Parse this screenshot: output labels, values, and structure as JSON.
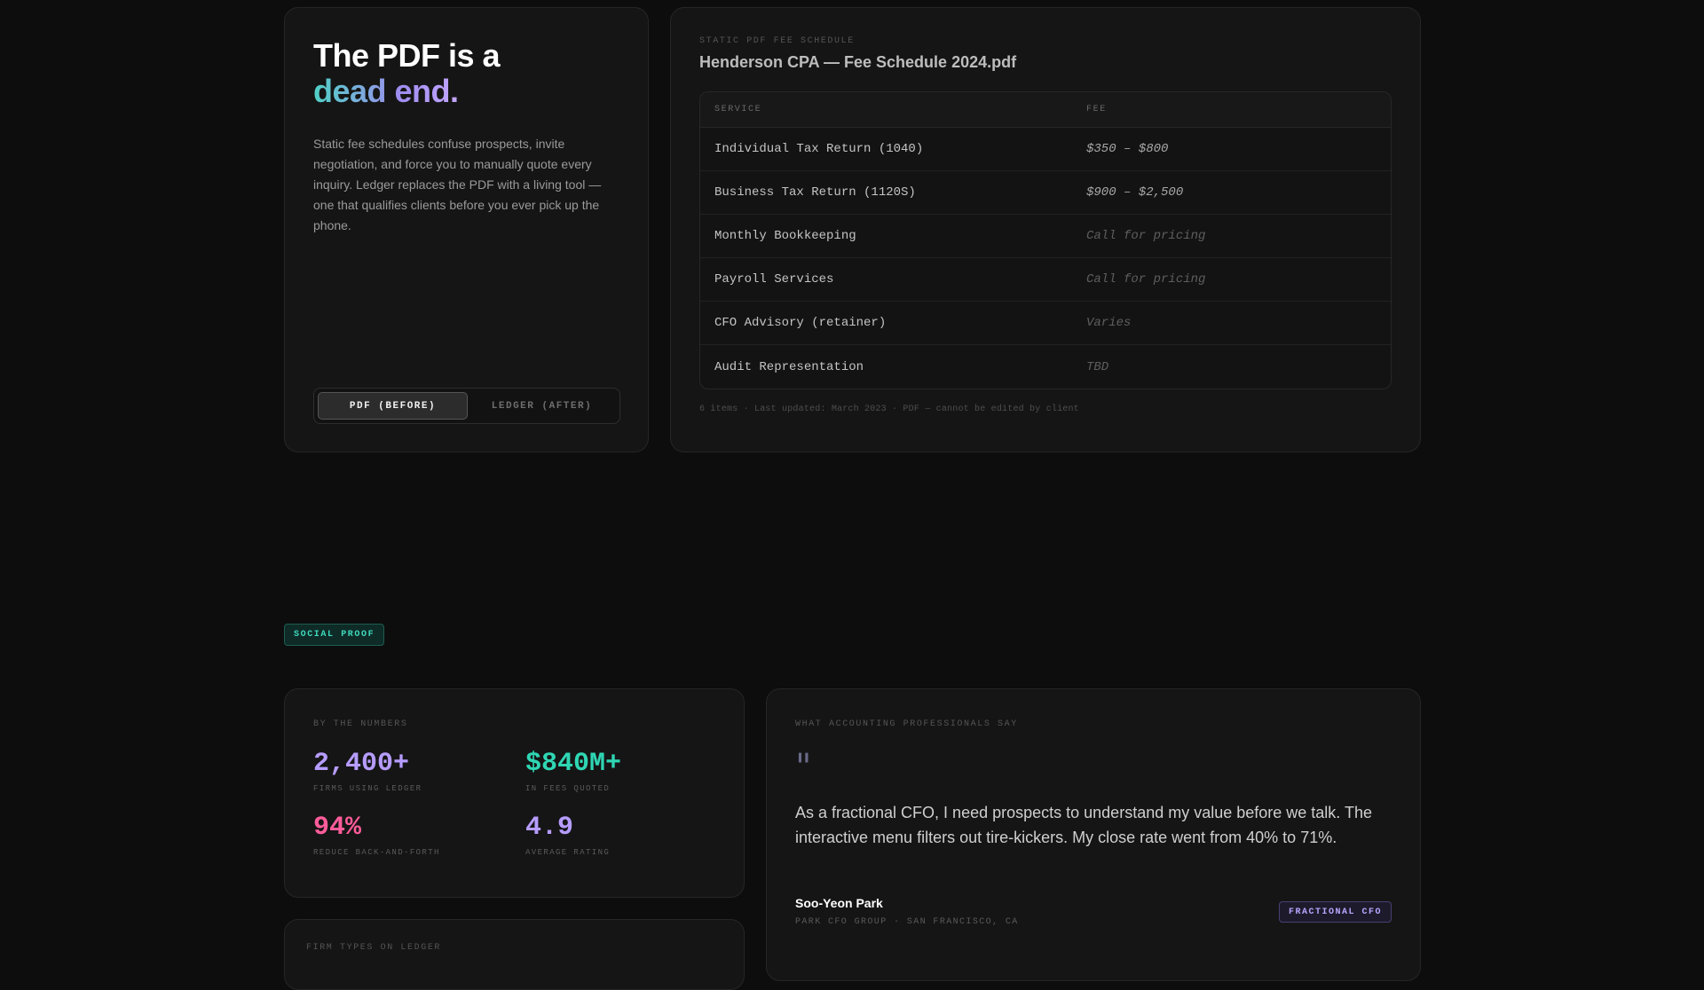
{
  "hero": {
    "title_line1": "The PDF is a",
    "title_line2": "dead end.",
    "description": "Static fee schedules confuse prospects, invite negotiation, and force you to manually quote every inquiry. Ledger replaces the PDF with a living tool — one that qualifies clients before you ever pick up the phone.",
    "toggle": {
      "before_label": "PDF (BEFORE)",
      "after_label": "LEDGER (AFTER)",
      "selected": "PDF (BEFORE)"
    }
  },
  "pdf": {
    "eyebrow": "STATIC PDF FEE SCHEDULE",
    "title": "Henderson CPA — Fee Schedule 2024.pdf",
    "columns": [
      "SERVICE",
      "FEE"
    ],
    "rows": [
      {
        "service": "Individual Tax Return (1040)",
        "fee": "$350 – $800"
      },
      {
        "service": "Business Tax Return (1120S)",
        "fee": "$900 – $2,500"
      },
      {
        "service": "Monthly Bookkeeping",
        "fee": "Call for pricing"
      },
      {
        "service": "Payroll Services",
        "fee": "Call for pricing"
      },
      {
        "service": "CFO Advisory (retainer)",
        "fee": "Varies"
      },
      {
        "service": "Audit Representation",
        "fee": "TBD"
      }
    ],
    "footer": "6 items · Last updated: March 2023 · PDF — cannot be edited by client"
  },
  "social_proof": {
    "badge": "SOCIAL PROOF"
  },
  "stats": {
    "eyebrow": "BY THE NUMBERS",
    "items": [
      {
        "value": "2,400+",
        "label": "FIRMS USING LEDGER",
        "color": "#b69cff"
      },
      {
        "value": "$840M+",
        "label": "IN FEES QUOTED",
        "color": "#2fd6b4"
      },
      {
        "value": "94%",
        "label": "REDUCE BACK-AND-FORTH",
        "color": "#ff5c9a"
      },
      {
        "value": "4.9",
        "label": "AVERAGE RATING",
        "color": "#b69cff"
      }
    ]
  },
  "testimonial": {
    "eyebrow": "WHAT ACCOUNTING PROFESSIONALS SAY",
    "quote_mark": "\"",
    "quote": "As a fractional CFO, I need prospects to understand my value before we talk. The interactive menu filters out tire-kickers. My close rate went from 40% to 71%.",
    "author_name": "Soo-Yeon Park",
    "author_org": "PARK CFO GROUP · SAN FRANCISCO, CA",
    "role_badge": "FRACTIONAL CFO"
  },
  "firm_types": {
    "eyebrow": "FIRM TYPES ON LEDGER"
  }
}
